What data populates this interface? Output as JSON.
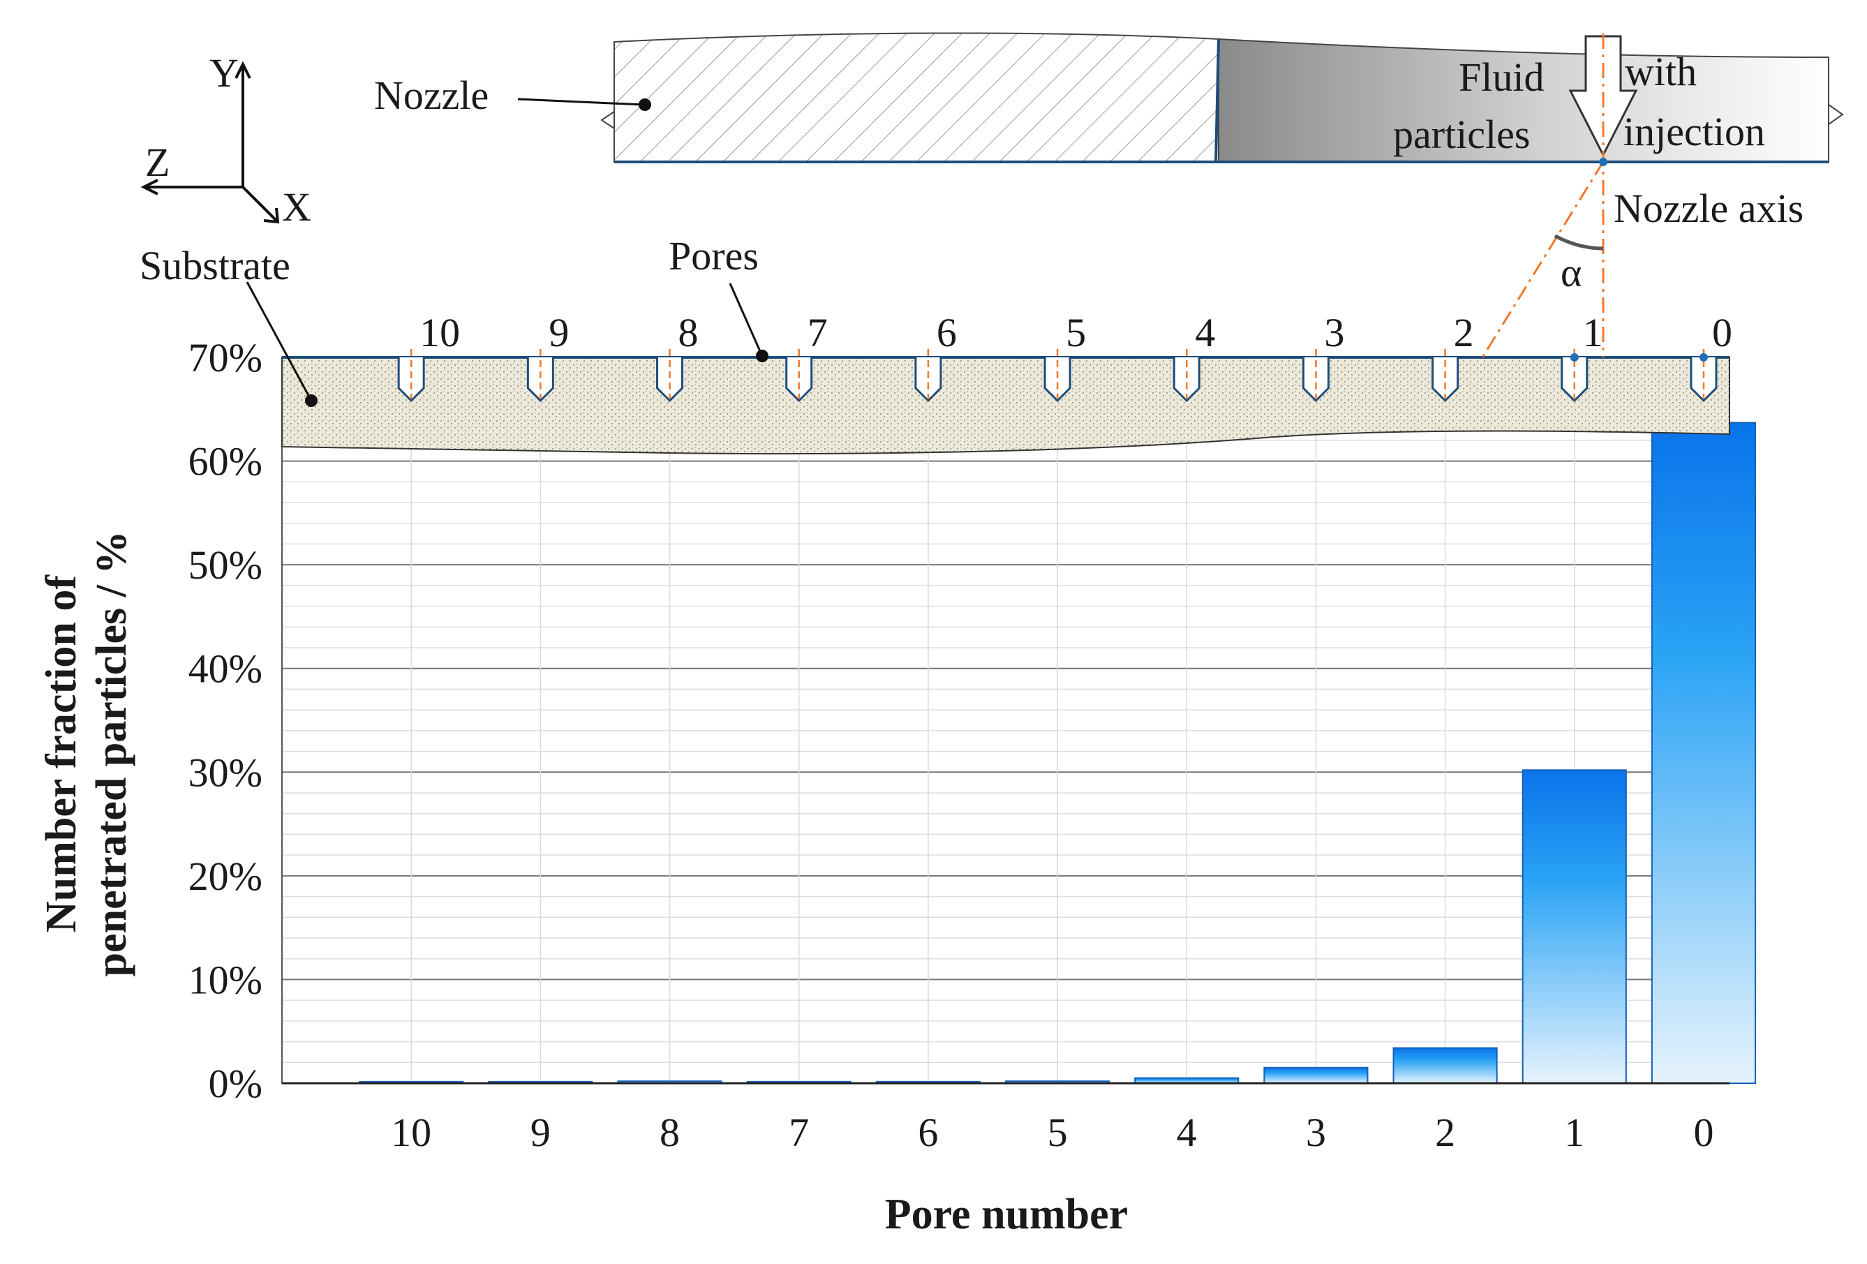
{
  "chart_data": {
    "type": "bar",
    "xlabel": "Pore number",
    "ylabel_lines": [
      "Number fraction of",
      "penetrated particles / %"
    ],
    "categories": [
      "10",
      "9",
      "8",
      "7",
      "6",
      "5",
      "4",
      "3",
      "2",
      "1",
      "0"
    ],
    "values": [
      0.0,
      0.0,
      0.2,
      0.0,
      0.0,
      0.2,
      0.5,
      1.5,
      3.4,
      30.2,
      63.7
    ],
    "y_unit": "%",
    "ylim": [
      0,
      70
    ],
    "yticks": [
      "0%",
      "10%",
      "20%",
      "30%",
      "40%",
      "50%",
      "60%",
      "70%"
    ],
    "grid": true,
    "bar_color": "#1a7fe8"
  },
  "schematic": {
    "axes_labels": {
      "y": "Y",
      "z": "Z",
      "x": "X"
    },
    "nozzle_label": "Nozzle",
    "substrate_label": "Substrate",
    "pores_label": "Pores",
    "fluid_text": [
      "Fluid",
      "particles"
    ],
    "injection_text": [
      "with",
      "injection"
    ],
    "nozzle_axis_label": "Nozzle axis",
    "angle_label": "α",
    "pore_numbers": [
      "10",
      "9",
      "8",
      "7",
      "6",
      "5",
      "4",
      "3",
      "2",
      "1",
      "0"
    ]
  }
}
